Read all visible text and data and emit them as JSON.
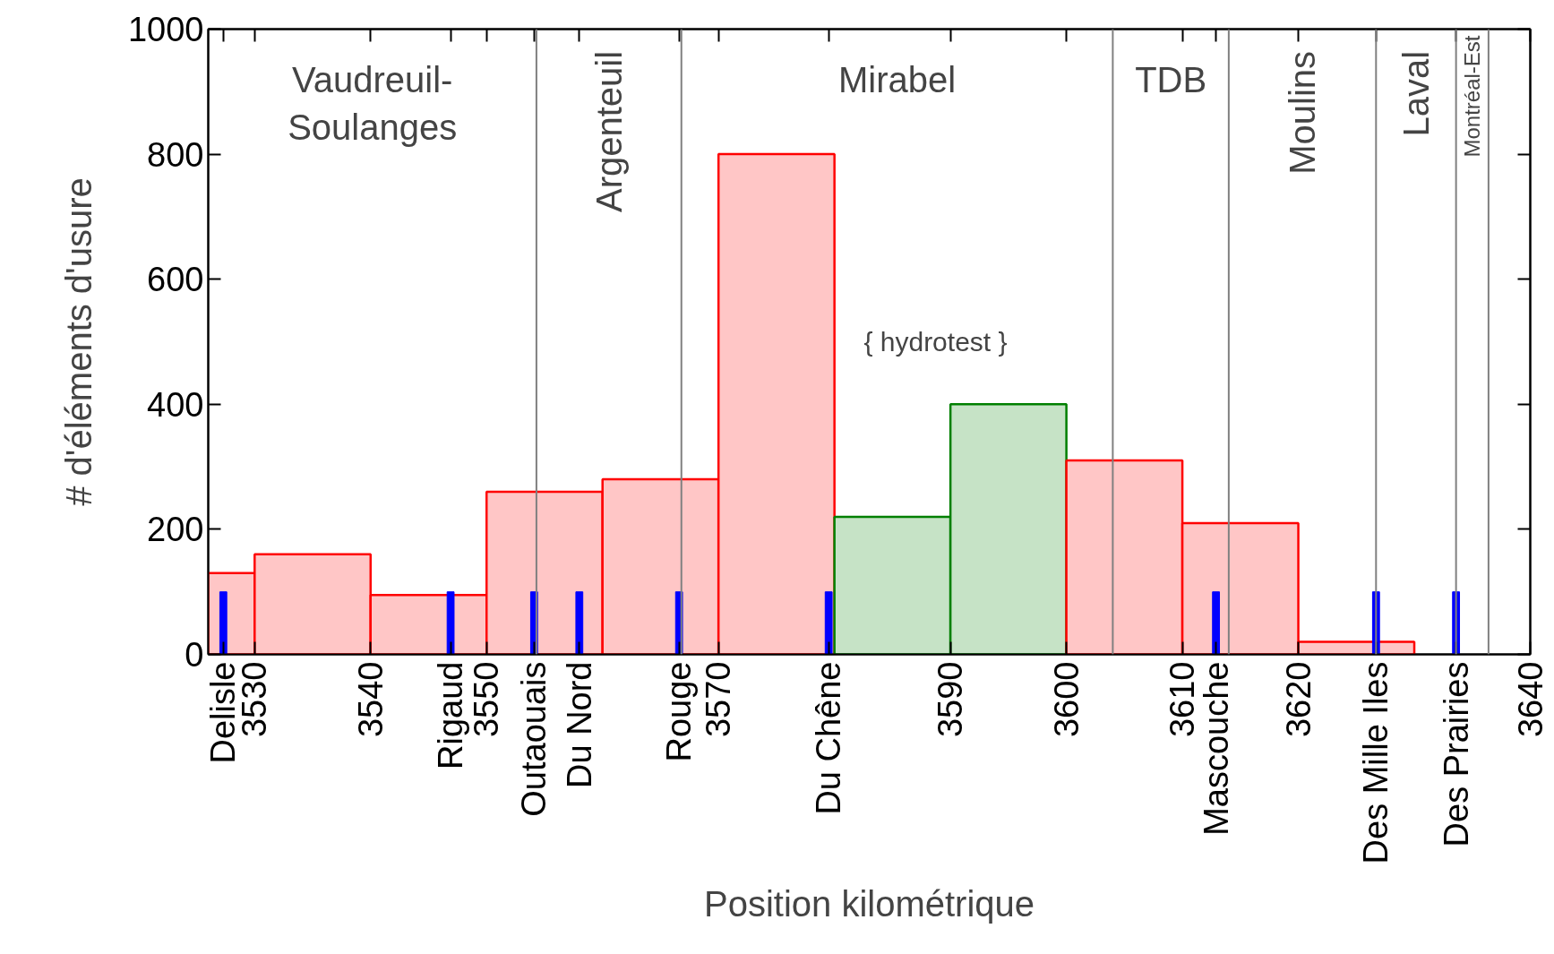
{
  "chart_data": {
    "type": "histogram",
    "xlabel": "Position kilométrique",
    "ylabel": "# d'éléments d'usure",
    "bins": [
      3526,
      3530,
      3540,
      3550,
      3560,
      3570,
      3580,
      3590,
      3600,
      3610,
      3620,
      3630
    ],
    "values": [
      130,
      160,
      95,
      260,
      280,
      800,
      220,
      400,
      310,
      210,
      20
    ],
    "colors": [
      "#ff0000",
      "#ff0000",
      "#ff0000",
      "#ff0000",
      "#ff0000",
      "#ff0000",
      "#008000",
      "#008000",
      "#ff0000",
      "#ff0000",
      "#ff0000"
    ],
    "series": [
      {
        "type": "bar",
        "color": "#0000ff",
        "x": [
          3527.3,
          3546.9,
          3554.1,
          3558.0,
          3566.6,
          3579.5,
          3612.9,
          3626.7,
          3633.6
        ],
        "values": [
          100,
          100,
          100,
          100,
          100,
          100,
          100,
          100,
          100
        ]
      }
    ],
    "xlim": [
      3526,
      3640
    ],
    "ylim": [
      0,
      1000
    ],
    "xticks": [
      {
        "value": 3527.3,
        "label": "Delisle"
      },
      3530,
      3540,
      {
        "value": 3546.9,
        "label": "Rigaud"
      },
      3550,
      {
        "value": 3554.1,
        "label": "Outaouais"
      },
      {
        "value": 3558.0,
        "label": "Du Nord"
      },
      {
        "value": 3566.6,
        "label": "Rouge"
      },
      3570,
      {
        "value": 3579.5,
        "label": "Du Chêne"
      },
      3590,
      3600,
      3610,
      {
        "value": 3612.9,
        "label": "Mascouche"
      },
      3620,
      {
        "value": 3626.7,
        "label": "Des Mille Iles"
      },
      {
        "value": 3633.6,
        "label": "Des Prairies"
      },
      3640
    ],
    "yticks": [
      0,
      200,
      400,
      600,
      800,
      1000
    ],
    "ref_lines": [
      {
        "axis": "x",
        "value": 3554.3,
        "color": "#808080"
      },
      {
        "axis": "x",
        "value": 3566.8,
        "color": "#808080"
      },
      {
        "axis": "x",
        "value": 3604.0,
        "color": "#808080"
      },
      {
        "axis": "x",
        "value": 3614.0,
        "color": "#808080"
      },
      {
        "axis": "x",
        "value": 3626.7,
        "color": "#808080"
      },
      {
        "axis": "x",
        "value": 3633.6,
        "color": "#808080"
      },
      {
        "axis": "x",
        "value": 3636.4,
        "color": "#808080"
      }
    ],
    "annotations": [
      "Vaudreuil-Soulanges",
      "Argenteuil",
      "Mirabel",
      "TDB",
      "Moulins",
      "Laval",
      "Montréal-Est",
      "{   hydrotest   }"
    ]
  }
}
